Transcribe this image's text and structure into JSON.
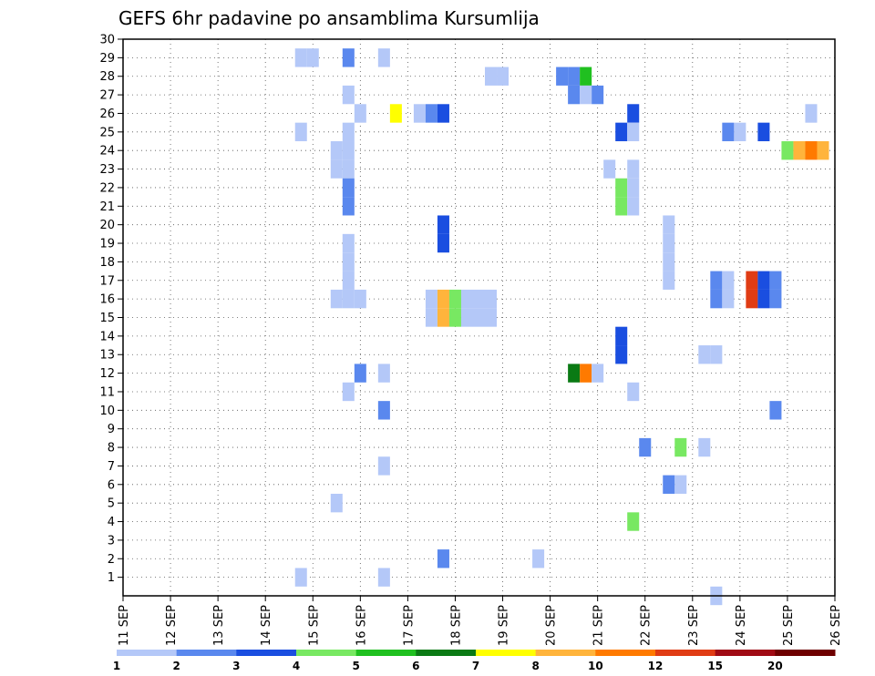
{
  "chart_data": {
    "type": "heatmap",
    "title": "GEFS 6hr padavine po ansamblima Kursumlija",
    "x_tick_labels": [
      "11 SEP",
      "12 SEP",
      "13 SEP",
      "14 SEP",
      "15 SEP",
      "16 SEP",
      "17 SEP",
      "18 SEP",
      "19 SEP",
      "20 SEP",
      "21 SEP",
      "22 SEP",
      "23 SEP",
      "24 SEP",
      "25 SEP",
      "26 SEP"
    ],
    "x_range_days": [
      11,
      26
    ],
    "y_tick_labels": [
      "1",
      "2",
      "3",
      "4",
      "5",
      "6",
      "7",
      "8",
      "9",
      "10",
      "11",
      "12",
      "13",
      "14",
      "15",
      "16",
      "17",
      "18",
      "19",
      "20",
      "21",
      "22",
      "23",
      "24",
      "25",
      "26",
      "27",
      "28",
      "29",
      "30"
    ],
    "y_range": [
      0,
      30
    ],
    "grid": true,
    "colorbar": {
      "labels": [
        "1",
        "2",
        "3",
        "4",
        "5",
        "6",
        "7",
        "8",
        "10",
        "12",
        "15",
        "20"
      ],
      "colors": [
        "#b4c8f8",
        "#5a88ee",
        "#1a4ee0",
        "#78e862",
        "#20c020",
        "#0a7a14",
        "#ffff00",
        "#ffb43c",
        "#ff7a00",
        "#e03c14",
        "#a00a14",
        "#6e0000"
      ]
    },
    "cells": [
      {
        "d": 14.75,
        "m": 29,
        "c": 1
      },
      {
        "d": 15.0,
        "m": 29,
        "c": 1
      },
      {
        "d": 15.75,
        "m": 29,
        "c": 2
      },
      {
        "d": 16.5,
        "m": 29,
        "c": 1
      },
      {
        "d": 18.75,
        "m": 28,
        "c": 1
      },
      {
        "d": 19.0,
        "m": 28,
        "c": 1
      },
      {
        "d": 20.25,
        "m": 28,
        "c": 2
      },
      {
        "d": 20.5,
        "m": 28,
        "c": 2
      },
      {
        "d": 20.75,
        "m": 28,
        "c": 5
      },
      {
        "d": 15.75,
        "m": 27,
        "c": 1
      },
      {
        "d": 20.5,
        "m": 27,
        "c": 2
      },
      {
        "d": 20.75,
        "m": 27,
        "c": 1
      },
      {
        "d": 21.0,
        "m": 27,
        "c": 2
      },
      {
        "d": 16.0,
        "m": 26,
        "c": 1
      },
      {
        "d": 16.75,
        "m": 26,
        "c": 7
      },
      {
        "d": 17.25,
        "m": 26,
        "c": 1
      },
      {
        "d": 17.5,
        "m": 26,
        "c": 2
      },
      {
        "d": 17.75,
        "m": 26,
        "c": 3
      },
      {
        "d": 21.75,
        "m": 26,
        "c": 3
      },
      {
        "d": 25.5,
        "m": 26,
        "c": 1
      },
      {
        "d": 14.75,
        "m": 25,
        "c": 1
      },
      {
        "d": 15.75,
        "m": 25,
        "c": 1
      },
      {
        "d": 21.5,
        "m": 25,
        "c": 3
      },
      {
        "d": 21.75,
        "m": 25,
        "c": 1
      },
      {
        "d": 23.75,
        "m": 25,
        "c": 2
      },
      {
        "d": 24.0,
        "m": 25,
        "c": 1
      },
      {
        "d": 24.5,
        "m": 25,
        "c": 3
      },
      {
        "d": 15.5,
        "m": 24,
        "c": 1
      },
      {
        "d": 15.75,
        "m": 24,
        "c": 1
      },
      {
        "d": 25.0,
        "m": 24,
        "c": 4
      },
      {
        "d": 25.25,
        "m": 24,
        "c": 8
      },
      {
        "d": 25.5,
        "m": 24,
        "c": 9
      },
      {
        "d": 25.75,
        "m": 24,
        "c": 8
      },
      {
        "d": 15.5,
        "m": 23,
        "c": 1
      },
      {
        "d": 15.75,
        "m": 23,
        "c": 1
      },
      {
        "d": 21.25,
        "m": 23,
        "c": 1
      },
      {
        "d": 21.75,
        "m": 23,
        "c": 1
      },
      {
        "d": 15.75,
        "m": 22,
        "c": 2
      },
      {
        "d": 21.5,
        "m": 22,
        "c": 4
      },
      {
        "d": 21.75,
        "m": 22,
        "c": 1
      },
      {
        "d": 15.75,
        "m": 21,
        "c": 2
      },
      {
        "d": 21.5,
        "m": 21,
        "c": 4
      },
      {
        "d": 21.75,
        "m": 21,
        "c": 1
      },
      {
        "d": 17.75,
        "m": 20,
        "c": 3
      },
      {
        "d": 22.5,
        "m": 20,
        "c": 1
      },
      {
        "d": 15.75,
        "m": 19,
        "c": 1
      },
      {
        "d": 17.75,
        "m": 19,
        "c": 3
      },
      {
        "d": 22.5,
        "m": 19,
        "c": 1
      },
      {
        "d": 15.75,
        "m": 18,
        "c": 1
      },
      {
        "d": 22.5,
        "m": 18,
        "c": 1
      },
      {
        "d": 15.75,
        "m": 17,
        "c": 1
      },
      {
        "d": 22.5,
        "m": 17,
        "c": 1
      },
      {
        "d": 23.5,
        "m": 17,
        "c": 2
      },
      {
        "d": 23.75,
        "m": 17,
        "c": 1
      },
      {
        "d": 24.25,
        "m": 17,
        "c": 10
      },
      {
        "d": 24.5,
        "m": 17,
        "c": 3
      },
      {
        "d": 24.75,
        "m": 17,
        "c": 2
      },
      {
        "d": 15.5,
        "m": 16,
        "c": 1
      },
      {
        "d": 15.75,
        "m": 16,
        "c": 1
      },
      {
        "d": 16.0,
        "m": 16,
        "c": 1
      },
      {
        "d": 17.5,
        "m": 16,
        "c": 1
      },
      {
        "d": 17.75,
        "m": 16,
        "c": 8
      },
      {
        "d": 18.0,
        "m": 16,
        "c": 4
      },
      {
        "d": 18.25,
        "m": 16,
        "c": 1
      },
      {
        "d": 18.5,
        "m": 16,
        "c": 1
      },
      {
        "d": 18.75,
        "m": 16,
        "c": 1
      },
      {
        "d": 23.5,
        "m": 16,
        "c": 2
      },
      {
        "d": 23.75,
        "m": 16,
        "c": 1
      },
      {
        "d": 24.25,
        "m": 16,
        "c": 10
      },
      {
        "d": 24.5,
        "m": 16,
        "c": 3
      },
      {
        "d": 24.75,
        "m": 16,
        "c": 2
      },
      {
        "d": 17.5,
        "m": 15,
        "c": 1
      },
      {
        "d": 17.75,
        "m": 15,
        "c": 8
      },
      {
        "d": 18.0,
        "m": 15,
        "c": 4
      },
      {
        "d": 18.25,
        "m": 15,
        "c": 1
      },
      {
        "d": 18.5,
        "m": 15,
        "c": 1
      },
      {
        "d": 18.75,
        "m": 15,
        "c": 1
      },
      {
        "d": 21.5,
        "m": 14,
        "c": 3
      },
      {
        "d": 21.5,
        "m": 13,
        "c": 3
      },
      {
        "d": 23.25,
        "m": 13,
        "c": 1
      },
      {
        "d": 23.5,
        "m": 13,
        "c": 1
      },
      {
        "d": 16.0,
        "m": 12,
        "c": 2
      },
      {
        "d": 16.5,
        "m": 12,
        "c": 1
      },
      {
        "d": 20.5,
        "m": 12,
        "c": 6
      },
      {
        "d": 20.75,
        "m": 12,
        "c": 9
      },
      {
        "d": 21.0,
        "m": 12,
        "c": 1
      },
      {
        "d": 15.75,
        "m": 11,
        "c": 1
      },
      {
        "d": 21.75,
        "m": 11,
        "c": 1
      },
      {
        "d": 16.5,
        "m": 10,
        "c": 2
      },
      {
        "d": 24.75,
        "m": 10,
        "c": 2
      },
      {
        "d": 22.0,
        "m": 8,
        "c": 2
      },
      {
        "d": 22.75,
        "m": 8,
        "c": 4
      },
      {
        "d": 23.25,
        "m": 8,
        "c": 1
      },
      {
        "d": 16.5,
        "m": 7,
        "c": 1
      },
      {
        "d": 22.5,
        "m": 6,
        "c": 2
      },
      {
        "d": 22.75,
        "m": 6,
        "c": 1
      },
      {
        "d": 15.5,
        "m": 5,
        "c": 1
      },
      {
        "d": 21.75,
        "m": 4,
        "c": 4
      },
      {
        "d": 17.75,
        "m": 2,
        "c": 2
      },
      {
        "d": 19.75,
        "m": 2,
        "c": 1
      },
      {
        "d": 14.75,
        "m": 1,
        "c": 1
      },
      {
        "d": 16.5,
        "m": 1,
        "c": 1
      },
      {
        "d": 23.5,
        "m": 0,
        "c": 1
      }
    ]
  }
}
